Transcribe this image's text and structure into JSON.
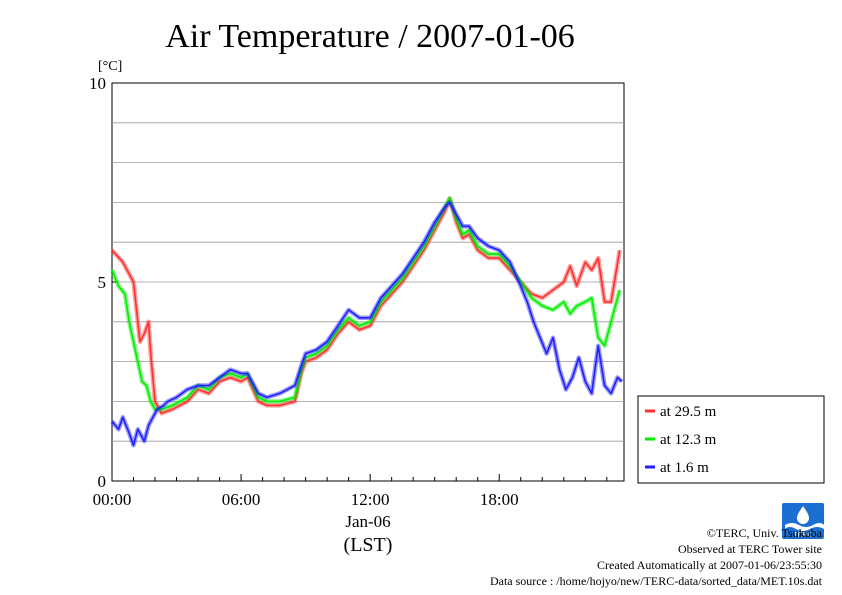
{
  "chart_data": {
    "type": "line",
    "title": "Air Temperature / 2007-01-06",
    "ylabel": "[°C]",
    "xlabel": "(LST)",
    "date_label": "Jan-06",
    "x_unit": "hour",
    "xlim": [
      0,
      23.8
    ],
    "ylim": [
      0,
      10
    ],
    "x_ticks": [
      0,
      6,
      12,
      18
    ],
    "x_tick_labels": [
      "00:00",
      "06:00",
      "12:00",
      "18:00"
    ],
    "y_ticks": [
      0,
      5,
      10
    ],
    "y_tick_labels": [
      "0",
      "5",
      "10"
    ],
    "grid": true,
    "legend_position": "right",
    "series": [
      {
        "name": "at 29.5 m",
        "color": "#ff3030",
        "x": [
          0,
          0.5,
          1,
          1.3,
          1.5,
          1.7,
          1.8,
          2,
          2.3,
          2.8,
          3.5,
          4,
          4.5,
          5,
          5.5,
          6,
          6.3,
          6.8,
          7.2,
          7.8,
          8.5,
          8.8,
          9,
          9.5,
          10,
          10.5,
          11,
          11.5,
          12,
          12.5,
          13,
          13.5,
          14,
          14.5,
          15,
          15.5,
          15.7,
          16,
          16.3,
          16.6,
          17,
          17.5,
          18,
          18.5,
          19,
          19.5,
          20,
          20.5,
          21,
          21.3,
          21.6,
          22,
          22.3,
          22.6,
          22.9,
          23.2,
          23.6
        ],
        "y": [
          5.8,
          5.5,
          5.0,
          3.5,
          3.7,
          4.0,
          3.2,
          2.0,
          1.7,
          1.8,
          2.0,
          2.3,
          2.2,
          2.5,
          2.6,
          2.5,
          2.6,
          2.0,
          1.9,
          1.9,
          2.0,
          2.7,
          3.0,
          3.1,
          3.3,
          3.7,
          4.0,
          3.8,
          3.9,
          4.4,
          4.7,
          5.0,
          5.4,
          5.8,
          6.3,
          6.8,
          7.1,
          6.5,
          6.1,
          6.2,
          5.8,
          5.6,
          5.6,
          5.3,
          5.0,
          4.7,
          4.6,
          4.8,
          5.0,
          5.4,
          4.9,
          5.5,
          5.3,
          5.6,
          4.5,
          4.5,
          5.8
        ]
      },
      {
        "name": "at 12.3 m",
        "color": "#00ee00",
        "x": [
          0,
          0.3,
          0.6,
          0.8,
          1,
          1.2,
          1.4,
          1.6,
          1.8,
          2,
          2.3,
          2.8,
          3.5,
          4,
          4.5,
          5,
          5.5,
          6,
          6.3,
          6.8,
          7.2,
          7.8,
          8.5,
          8.8,
          9,
          9.5,
          10,
          10.5,
          11,
          11.5,
          12,
          12.5,
          13,
          13.5,
          14,
          14.5,
          15,
          15.5,
          15.7,
          16,
          16.3,
          16.6,
          17,
          17.5,
          18,
          18.5,
          19,
          19.5,
          20,
          20.5,
          21,
          21.3,
          21.6,
          22,
          22.3,
          22.6,
          22.9,
          23.2,
          23.6
        ],
        "y": [
          5.3,
          4.9,
          4.7,
          4.0,
          3.5,
          3.0,
          2.5,
          2.4,
          2.0,
          1.8,
          1.8,
          1.9,
          2.1,
          2.4,
          2.3,
          2.6,
          2.7,
          2.6,
          2.7,
          2.1,
          2.0,
          2.0,
          2.1,
          2.8,
          3.1,
          3.2,
          3.4,
          3.8,
          4.1,
          3.9,
          4.0,
          4.5,
          4.8,
          5.1,
          5.5,
          5.9,
          6.4,
          6.9,
          7.1,
          6.6,
          6.2,
          6.3,
          5.9,
          5.7,
          5.7,
          5.4,
          5.0,
          4.6,
          4.4,
          4.3,
          4.5,
          4.2,
          4.4,
          4.5,
          4.6,
          3.6,
          3.4,
          4.0,
          4.8
        ]
      },
      {
        "name": "at 1.6 m",
        "color": "#2020ff",
        "x": [
          0,
          0.3,
          0.5,
          0.8,
          1,
          1.2,
          1.5,
          1.7,
          1.9,
          2.1,
          2.4,
          2.6,
          3,
          3.5,
          4,
          4.5,
          5,
          5.5,
          6,
          6.3,
          6.8,
          7.2,
          7.8,
          8.5,
          8.8,
          9,
          9.5,
          10,
          10.5,
          11,
          11.5,
          12,
          12.5,
          13,
          13.5,
          14,
          14.5,
          15,
          15.5,
          15.7,
          16,
          16.3,
          16.6,
          17,
          17.5,
          18,
          18.5,
          19,
          19.3,
          19.6,
          19.9,
          20.2,
          20.5,
          20.8,
          21.1,
          21.4,
          21.7,
          22,
          22.3,
          22.6,
          22.9,
          23.2,
          23.5,
          23.7
        ],
        "y": [
          1.5,
          1.3,
          1.6,
          1.2,
          0.9,
          1.3,
          1.0,
          1.4,
          1.6,
          1.8,
          1.9,
          2.0,
          2.1,
          2.3,
          2.4,
          2.4,
          2.6,
          2.8,
          2.7,
          2.7,
          2.2,
          2.1,
          2.2,
          2.4,
          2.9,
          3.2,
          3.3,
          3.5,
          3.9,
          4.3,
          4.1,
          4.1,
          4.6,
          4.9,
          5.2,
          5.6,
          6.0,
          6.5,
          6.9,
          7.0,
          6.7,
          6.4,
          6.4,
          6.1,
          5.9,
          5.8,
          5.5,
          4.9,
          4.5,
          4.0,
          3.6,
          3.2,
          3.6,
          2.8,
          2.3,
          2.6,
          3.1,
          2.5,
          2.2,
          3.4,
          2.4,
          2.2,
          2.6,
          2.5
        ]
      }
    ]
  },
  "footer": {
    "copyright": "©TERC, Univ. Tsukuba",
    "observed": "Observed at TERC Tower site",
    "created": "Created Automatically at 2007-01-06/23:55:30",
    "source": "Data source : /home/hojyo/new/TERC-data/sorted_data/MET.10s.dat"
  },
  "logo": {
    "icon": "terc-logo-icon",
    "text": "TERC",
    "color": "#1a6fd0"
  }
}
